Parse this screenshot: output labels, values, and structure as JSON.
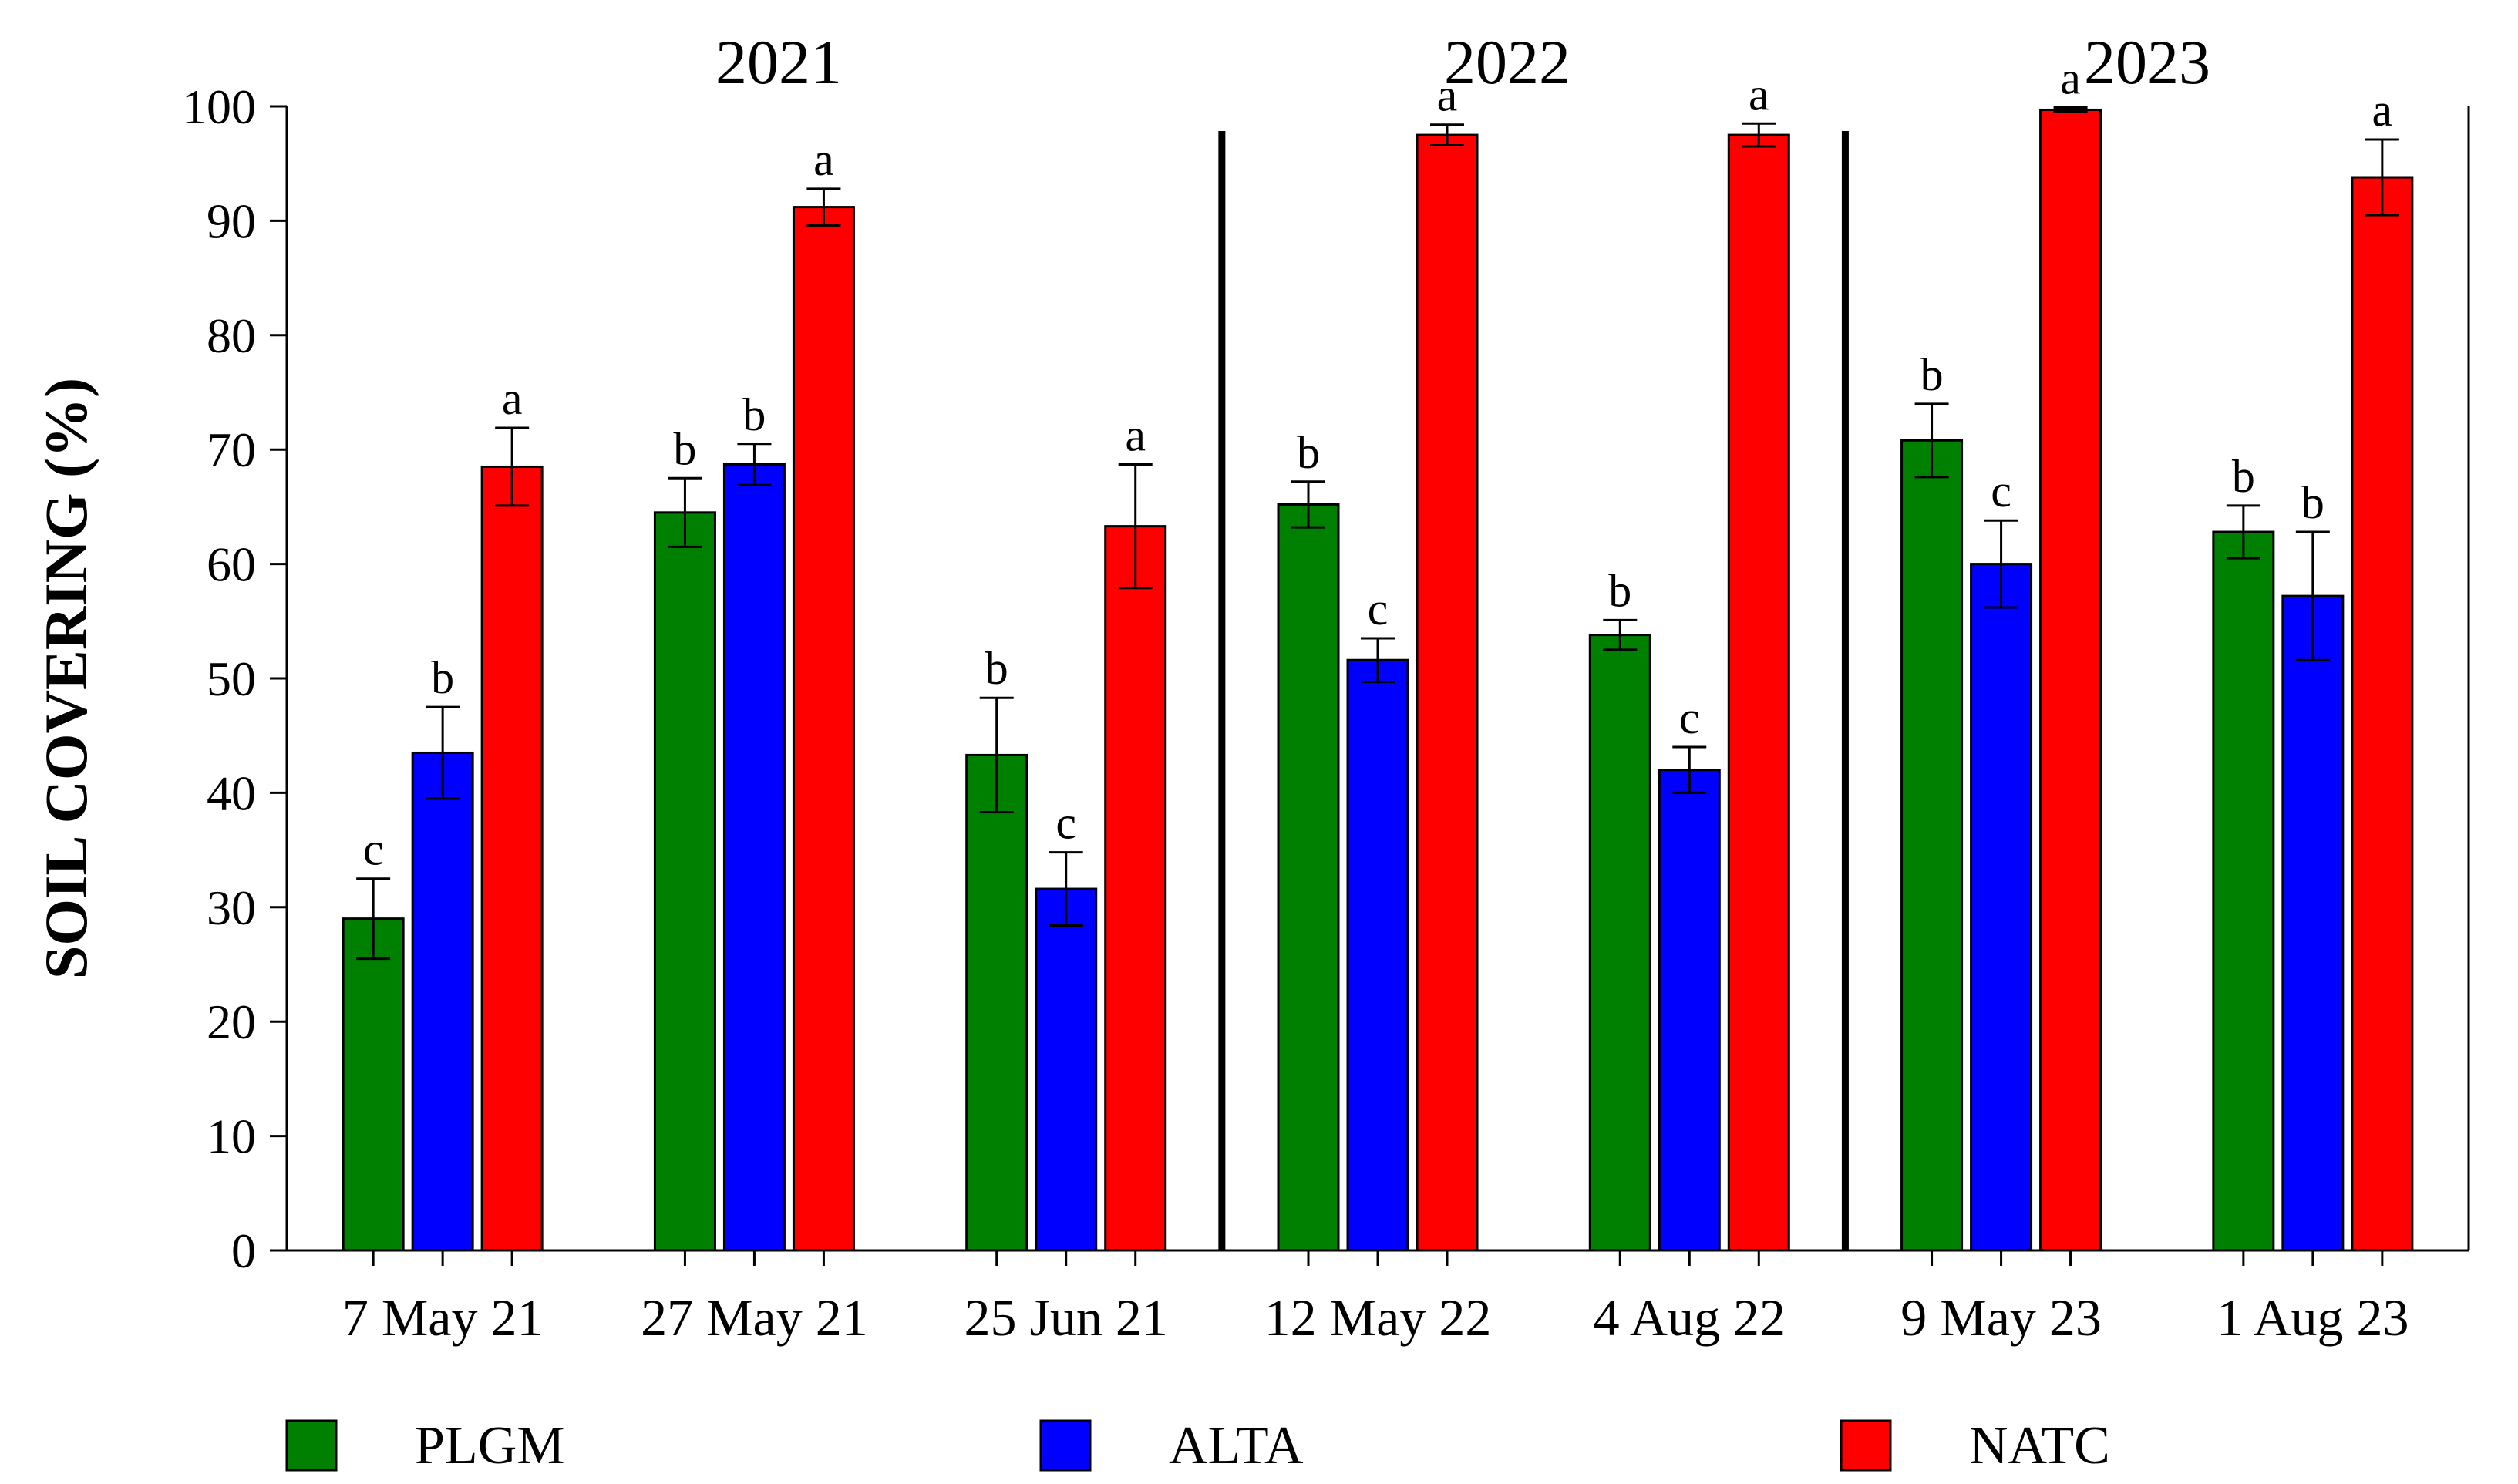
{
  "chart_data": {
    "type": "bar",
    "title": "",
    "xlabel": "",
    "ylabel": "SOIL COVERING (%)",
    "ylim": [
      0,
      100
    ],
    "yticks": [
      0,
      10,
      20,
      30,
      40,
      50,
      60,
      70,
      80,
      90,
      100
    ],
    "grid": false,
    "legend_position": "bottom",
    "categories": [
      "7 May 21",
      "27 May 21",
      "25 Jun 21",
      "12 May 22",
      "4 Aug 22",
      "9 May 23",
      "1 Aug 23"
    ],
    "year_groups": [
      {
        "label": "2021",
        "categories": [
          0,
          1,
          2
        ]
      },
      {
        "label": "2022",
        "categories": [
          3,
          4
        ]
      },
      {
        "label": "2023",
        "categories": [
          5,
          6
        ]
      }
    ],
    "series": [
      {
        "name": "PLGM",
        "color": "#008000",
        "values": [
          29,
          64.5,
          43.3,
          65.2,
          53.8,
          70.8,
          62.8
        ],
        "errors": [
          3.5,
          3.0,
          5.0,
          2.0,
          1.3,
          3.2,
          2.3
        ],
        "letters": [
          "c",
          "b",
          "b",
          "b",
          "b",
          "b",
          "b"
        ]
      },
      {
        "name": "ALTA",
        "color": "#0000FF",
        "values": [
          43.5,
          68.7,
          31.6,
          51.6,
          42,
          60,
          57.2
        ],
        "errors": [
          4.0,
          1.8,
          3.2,
          1.9,
          2.0,
          3.8,
          5.6
        ],
        "letters": [
          "b",
          "b",
          "c",
          "c",
          "c",
          "c",
          "b"
        ]
      },
      {
        "name": "NATC",
        "color": "#FF0000",
        "values": [
          68.5,
          91.2,
          63.3,
          97.5,
          97.5,
          99.7,
          93.8
        ],
        "errors": [
          3.4,
          1.6,
          5.4,
          0.9,
          1.0,
          0.2,
          3.3
        ],
        "letters": [
          "a",
          "a",
          "a",
          "a",
          "a",
          "a",
          "a"
        ]
      }
    ]
  }
}
